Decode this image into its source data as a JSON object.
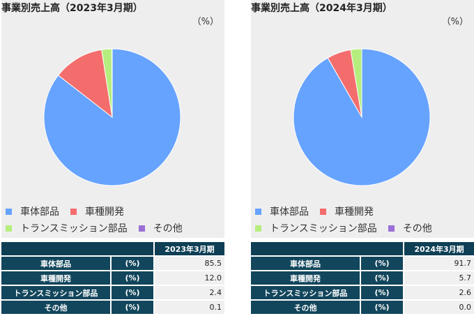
{
  "colors": {
    "body_parts": "#66a3ff",
    "vehicle_dev": "#f46d6d",
    "transmission": "#b5ee7e",
    "other": "#9a6fd6"
  },
  "chart_data": [
    {
      "type": "pie",
      "title": "事業別売上高（2023年3月期）",
      "unit": "（%）",
      "categories": [
        "車体部品",
        "車種開発",
        "トランスミッション部品",
        "その他"
      ],
      "values": [
        85.5,
        12.0,
        2.4,
        0.1
      ],
      "legend": "bottom",
      "table": {
        "year_header": "2023年3月期",
        "unit_label": "(%)",
        "rows": [
          {
            "name": "車体部品",
            "value": "85.5"
          },
          {
            "name": "車種開発",
            "value": "12.0"
          },
          {
            "name": "トランスミッション部品",
            "value": "2.4"
          },
          {
            "name": "その他",
            "value": "0.1"
          }
        ]
      }
    },
    {
      "type": "pie",
      "title": "事業別売上高（2024年3月期）",
      "unit": "（%）",
      "categories": [
        "車体部品",
        "車種開発",
        "トランスミッション部品",
        "その他"
      ],
      "values": [
        91.7,
        5.7,
        2.6,
        0.0
      ],
      "legend": "bottom",
      "table": {
        "year_header": "2024年3月期",
        "unit_label": "(%)",
        "rows": [
          {
            "name": "車体部品",
            "value": "91.7"
          },
          {
            "name": "車種開発",
            "value": "5.7"
          },
          {
            "name": "トランスミッション部品",
            "value": "2.6"
          },
          {
            "name": "その他",
            "value": "0.0"
          }
        ]
      }
    }
  ]
}
